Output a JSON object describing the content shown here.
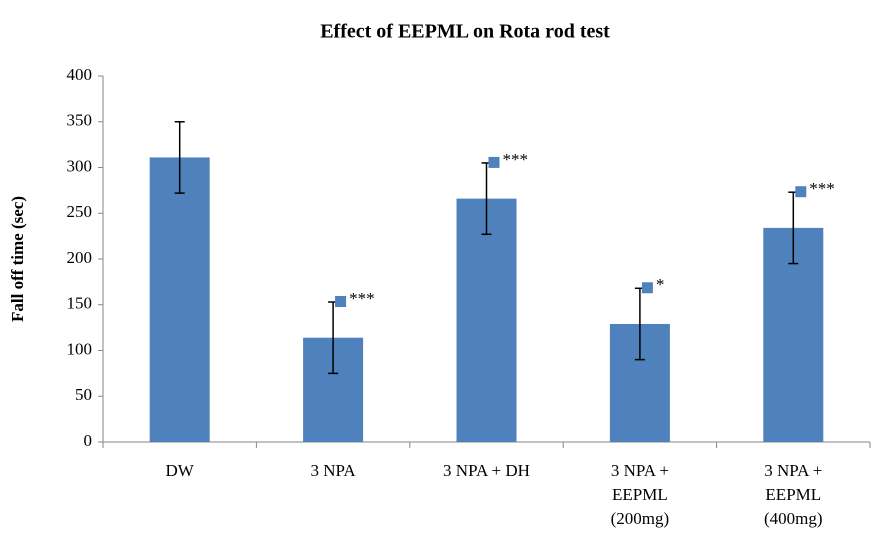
{
  "chart_data": {
    "type": "bar",
    "title": "Effect of EEPML on Rota rod test",
    "y_label": "Fall off time (sec)",
    "categories": [
      [
        "DW"
      ],
      [
        "3 NPA"
      ],
      [
        "3 NPA  + DH"
      ],
      [
        "3 NPA  +",
        "EEPML",
        "(200mg)"
      ],
      [
        "3 NPA  +",
        "EEPML",
        "(400mg)"
      ]
    ],
    "values": [
      311,
      114,
      266,
      129,
      234
    ],
    "errors": [
      39,
      39,
      39,
      39,
      39
    ],
    "annotations": [
      null,
      "***",
      "***",
      "*",
      "***"
    ],
    "color": "#4f81bd",
    "marker_color": "#4f81bd",
    "ylim": [
      0,
      400
    ],
    "yticks": [
      0,
      50,
      100,
      150,
      200,
      250,
      300,
      350,
      400
    ],
    "grid": false
  }
}
